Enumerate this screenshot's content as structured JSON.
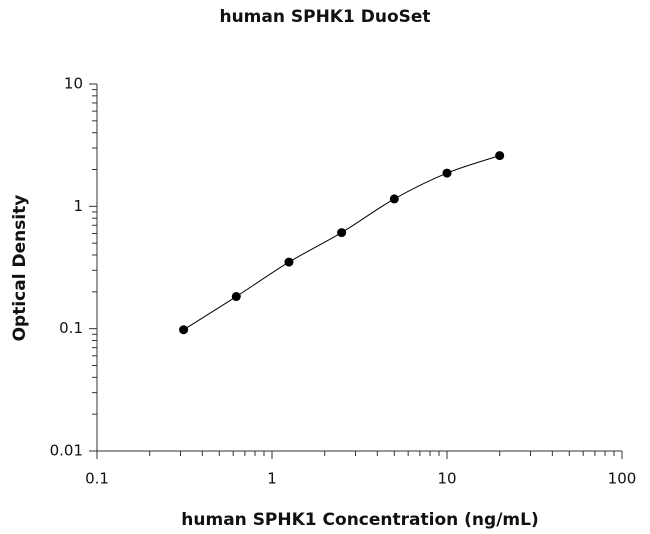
{
  "chart_data": {
    "type": "scatter",
    "title": "human SPHK1 DuoSet",
    "x_label": "human SPHK1 Concentration (ng/mL)",
    "y_label": "Optical Density",
    "x": [
      0.3125,
      0.625,
      1.25,
      2.5,
      5,
      10,
      20
    ],
    "y": [
      0.098,
      0.183,
      0.35,
      0.61,
      1.15,
      1.87,
      2.6
    ],
    "color": "#000000",
    "xlim": [
      0.1,
      100
    ],
    "ylim": [
      0.01,
      10
    ],
    "xticks": [
      0.1,
      1,
      10,
      100
    ],
    "yticks": [
      0.01,
      0.1,
      1,
      10
    ],
    "xlog": true,
    "ylog": true,
    "grid": false
  }
}
